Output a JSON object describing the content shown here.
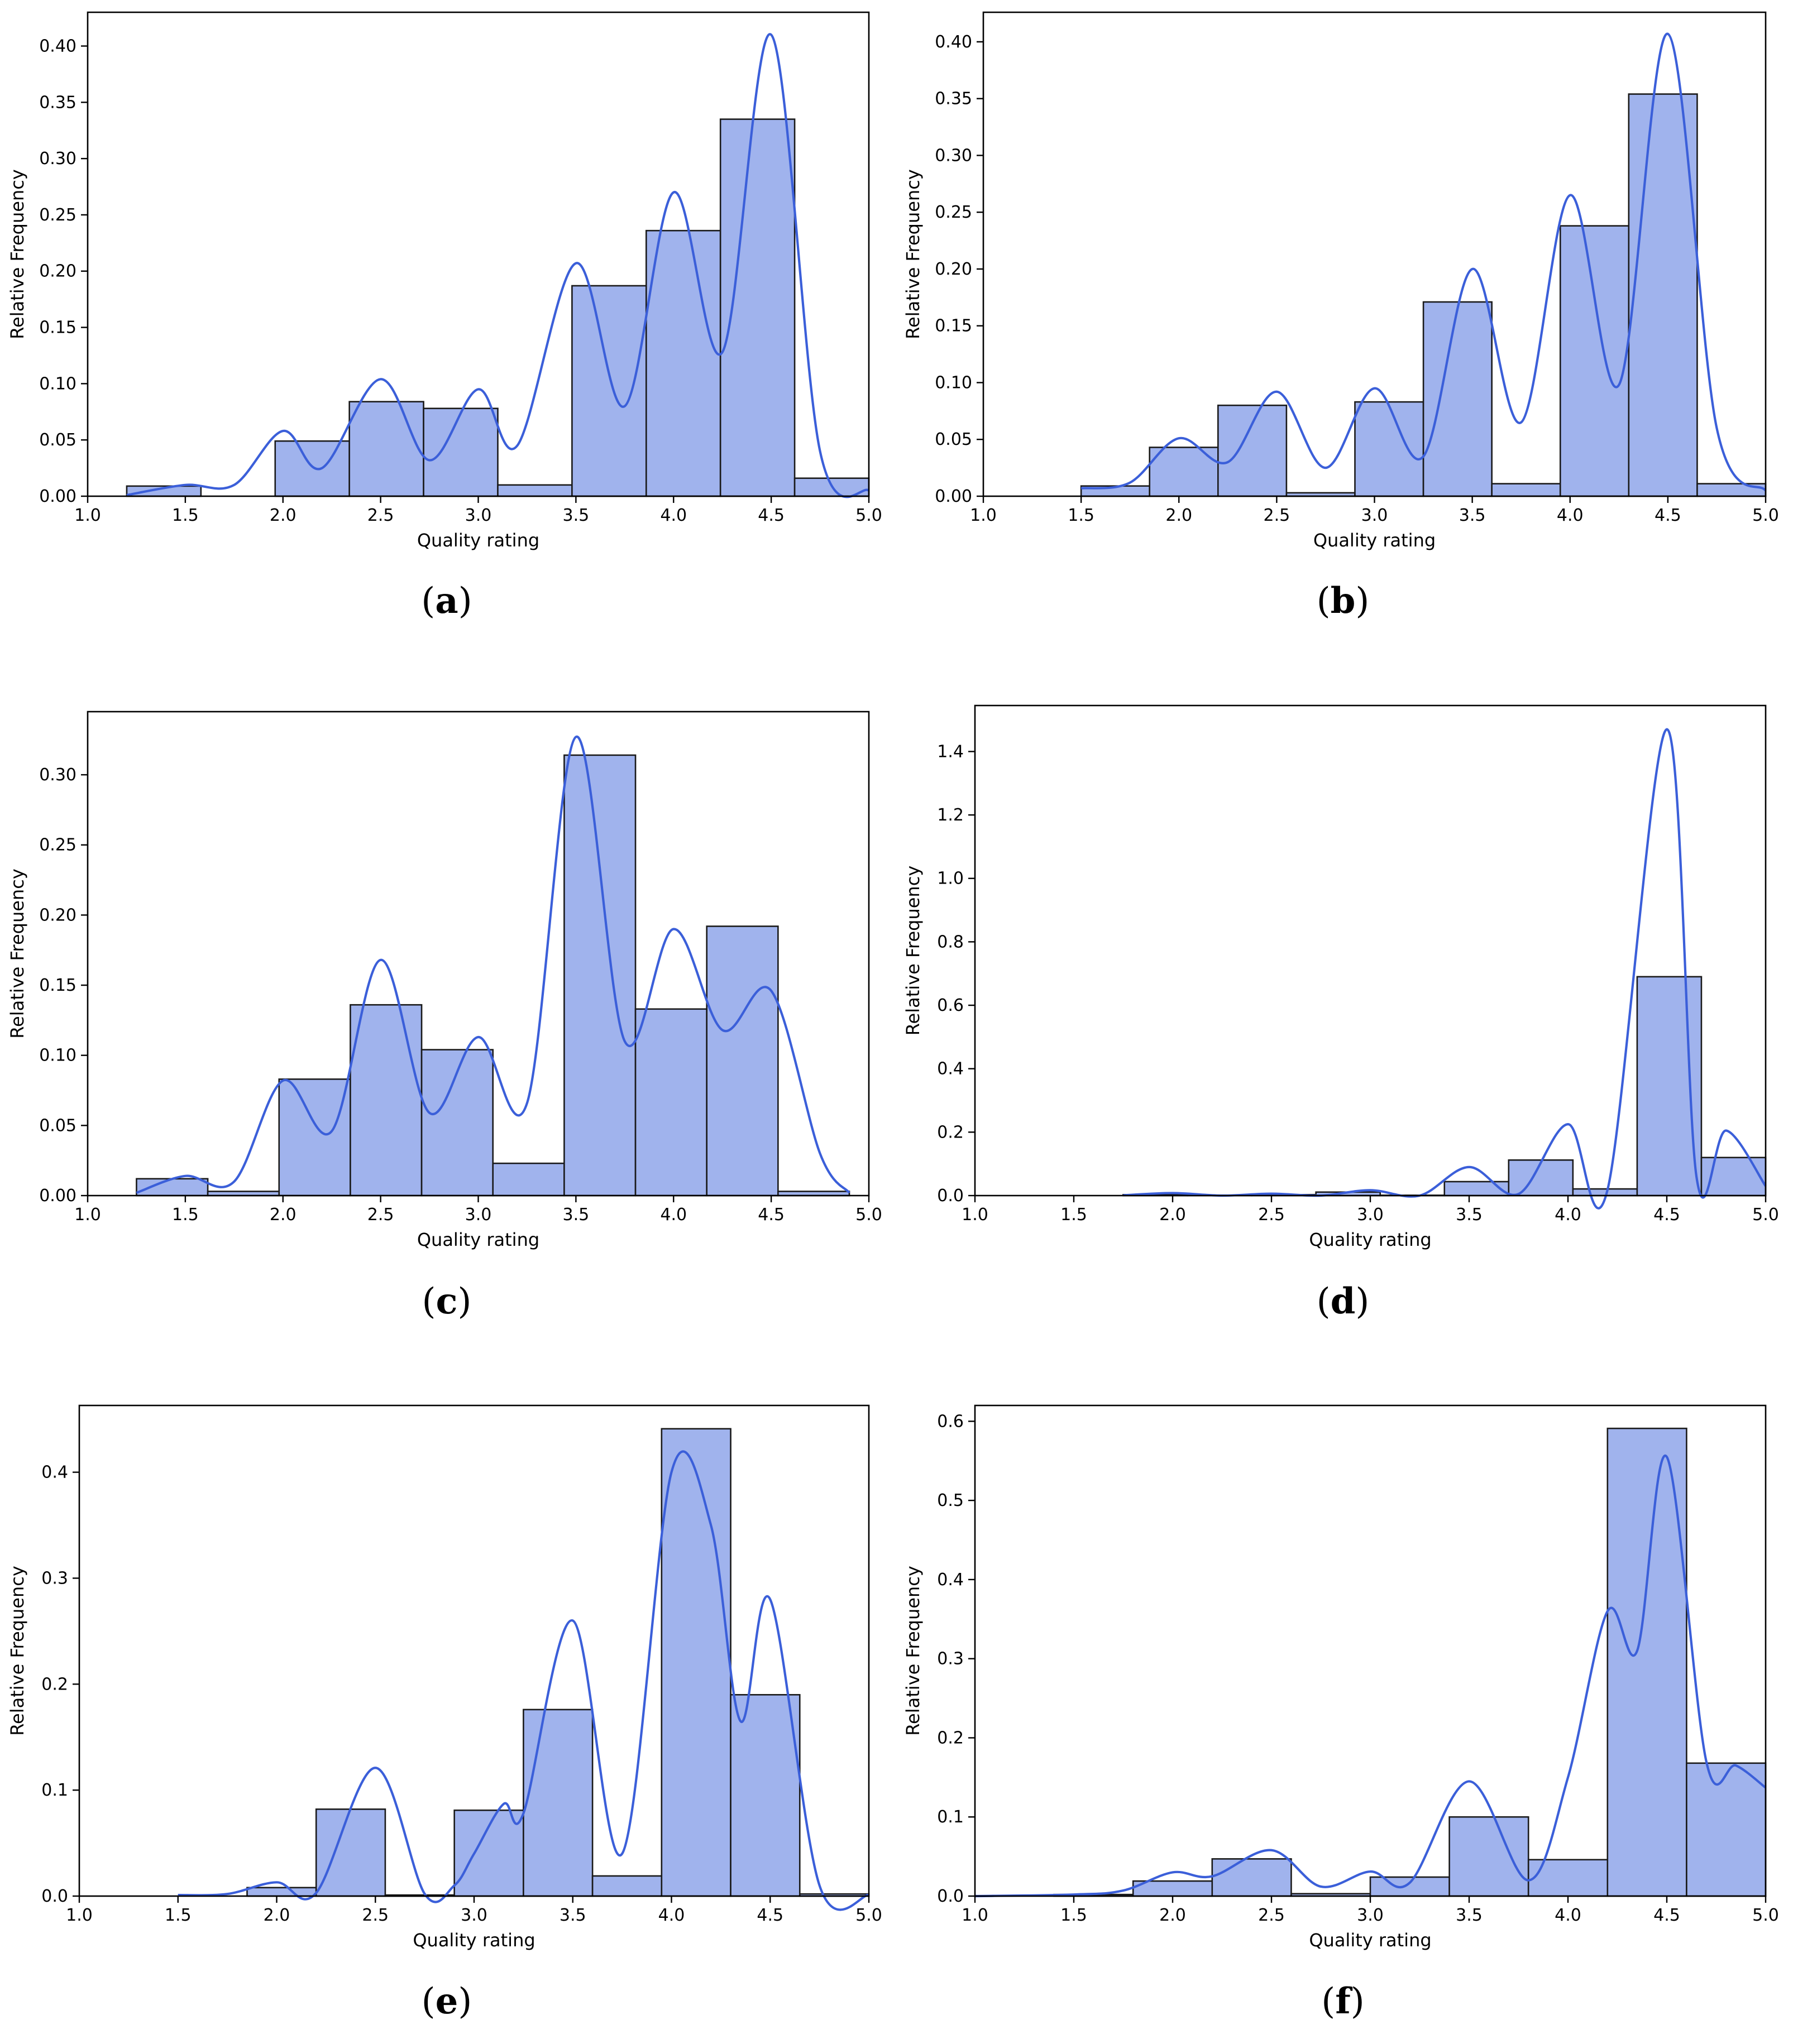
{
  "chart_data": [
    {
      "type": "bar",
      "label_letter": "a",
      "xlabel": "Quality rating",
      "ylabel": "Relative Frequency",
      "xlim": [
        1.0,
        5.0
      ],
      "ylim": [
        0.0,
        0.43
      ],
      "xticks": [
        1.0,
        1.5,
        2.0,
        2.5,
        3.0,
        3.5,
        4.0,
        4.5,
        5.0
      ],
      "yticks": [
        0.0,
        0.05,
        0.1,
        0.15,
        0.2,
        0.25,
        0.3,
        0.35,
        0.4
      ],
      "xtick_labels": [
        "1.0",
        "1.5",
        "2.0",
        "2.5",
        "3.0",
        "3.5",
        "4.0",
        "4.5",
        "5.0"
      ],
      "ytick_labels": [
        "0.00",
        "0.05",
        "0.10",
        "0.15",
        "0.20",
        "0.25",
        "0.30",
        "0.35",
        "0.40"
      ],
      "bins": [
        {
          "x0": 1.2,
          "x1": 1.58,
          "value": 0.009
        },
        {
          "x0": 1.58,
          "x1": 1.96,
          "value": 0.0
        },
        {
          "x0": 1.96,
          "x1": 2.34,
          "value": 0.049
        },
        {
          "x0": 2.34,
          "x1": 2.72,
          "value": 0.084
        },
        {
          "x0": 2.72,
          "x1": 3.1,
          "value": 0.078
        },
        {
          "x0": 3.1,
          "x1": 3.48,
          "value": 0.01
        },
        {
          "x0": 3.48,
          "x1": 3.86,
          "value": 0.187
        },
        {
          "x0": 3.86,
          "x1": 4.24,
          "value": 0.236
        },
        {
          "x0": 4.24,
          "x1": 4.62,
          "value": 0.335
        },
        {
          "x0": 4.62,
          "x1": 5.0,
          "value": 0.016
        }
      ],
      "kde": [
        [
          1.2,
          0.001
        ],
        [
          1.5,
          0.01
        ],
        [
          1.75,
          0.01
        ],
        [
          2.0,
          0.058
        ],
        [
          2.2,
          0.025
        ],
        [
          2.5,
          0.104
        ],
        [
          2.75,
          0.032
        ],
        [
          3.0,
          0.095
        ],
        [
          3.2,
          0.045
        ],
        [
          3.5,
          0.207
        ],
        [
          3.75,
          0.08
        ],
        [
          4.0,
          0.27
        ],
        [
          4.25,
          0.128
        ],
        [
          4.5,
          0.41
        ],
        [
          4.75,
          0.04
        ],
        [
          5.0,
          0.005
        ]
      ]
    },
    {
      "type": "bar",
      "label_letter": "b",
      "xlabel": "Quality rating",
      "ylabel": "Relative Frequency",
      "xlim": [
        1.0,
        5.0
      ],
      "ylim": [
        0.0,
        0.426
      ],
      "xticks": [
        1.0,
        1.5,
        2.0,
        2.5,
        3.0,
        3.5,
        4.0,
        4.5,
        5.0
      ],
      "yticks": [
        0.0,
        0.05,
        0.1,
        0.15,
        0.2,
        0.25,
        0.3,
        0.35,
        0.4
      ],
      "xtick_labels": [
        "1.0",
        "1.5",
        "2.0",
        "2.5",
        "3.0",
        "3.5",
        "4.0",
        "4.5",
        "5.0"
      ],
      "ytick_labels": [
        "0.00",
        "0.05",
        "0.10",
        "0.15",
        "0.20",
        "0.25",
        "0.30",
        "0.35",
        "0.40"
      ],
      "bins": [
        {
          "x0": 1.5,
          "x1": 1.85,
          "value": 0.009
        },
        {
          "x0": 1.85,
          "x1": 2.2,
          "value": 0.043
        },
        {
          "x0": 2.2,
          "x1": 2.55,
          "value": 0.08
        },
        {
          "x0": 2.55,
          "x1": 2.9,
          "value": 0.003
        },
        {
          "x0": 2.9,
          "x1": 3.25,
          "value": 0.083
        },
        {
          "x0": 3.25,
          "x1": 3.6,
          "value": 0.171
        },
        {
          "x0": 3.6,
          "x1": 3.95,
          "value": 0.011
        },
        {
          "x0": 3.95,
          "x1": 4.3,
          "value": 0.238
        },
        {
          "x0": 4.3,
          "x1": 4.65,
          "value": 0.354
        },
        {
          "x0": 4.65,
          "x1": 5.0,
          "value": 0.011
        }
      ],
      "kde": [
        [
          1.5,
          0.007
        ],
        [
          1.75,
          0.012
        ],
        [
          2.0,
          0.051
        ],
        [
          2.25,
          0.03
        ],
        [
          2.5,
          0.092
        ],
        [
          2.75,
          0.025
        ],
        [
          3.0,
          0.095
        ],
        [
          3.25,
          0.035
        ],
        [
          3.5,
          0.2
        ],
        [
          3.75,
          0.065
        ],
        [
          4.0,
          0.265
        ],
        [
          4.25,
          0.098
        ],
        [
          4.5,
          0.407
        ],
        [
          4.75,
          0.06
        ],
        [
          5.0,
          0.005
        ]
      ]
    },
    {
      "type": "bar",
      "label_letter": "c",
      "xlabel": "Quality rating",
      "ylabel": "Relative Frequency",
      "xlim": [
        1.0,
        5.0
      ],
      "ylim": [
        0.0,
        0.345
      ],
      "xticks": [
        1.0,
        1.5,
        2.0,
        2.5,
        3.0,
        3.5,
        4.0,
        4.5,
        5.0
      ],
      "yticks": [
        0.0,
        0.05,
        0.1,
        0.15,
        0.2,
        0.25,
        0.3
      ],
      "xtick_labels": [
        "1.0",
        "1.5",
        "2.0",
        "2.5",
        "3.0",
        "3.5",
        "4.0",
        "4.5",
        "5.0"
      ],
      "ytick_labels": [
        "0.00",
        "0.05",
        "0.10",
        "0.15",
        "0.20",
        "0.25",
        "0.30"
      ],
      "bins": [
        {
          "x0": 1.25,
          "x1": 1.615,
          "value": 0.012
        },
        {
          "x0": 1.615,
          "x1": 1.98,
          "value": 0.003
        },
        {
          "x0": 1.98,
          "x1": 2.345,
          "value": 0.083
        },
        {
          "x0": 2.345,
          "x1": 2.71,
          "value": 0.136
        },
        {
          "x0": 2.71,
          "x1": 3.075,
          "value": 0.104
        },
        {
          "x0": 3.075,
          "x1": 3.44,
          "value": 0.023
        },
        {
          "x0": 3.44,
          "x1": 3.805,
          "value": 0.314
        },
        {
          "x0": 3.805,
          "x1": 4.17,
          "value": 0.133
        },
        {
          "x0": 4.17,
          "x1": 4.535,
          "value": 0.192
        },
        {
          "x0": 4.535,
          "x1": 4.9,
          "value": 0.003
        }
      ],
      "kde": [
        [
          1.25,
          0.002
        ],
        [
          1.5,
          0.014
        ],
        [
          1.75,
          0.01
        ],
        [
          2.0,
          0.082
        ],
        [
          2.25,
          0.046
        ],
        [
          2.5,
          0.168
        ],
        [
          2.75,
          0.059
        ],
        [
          3.0,
          0.113
        ],
        [
          3.25,
          0.066
        ],
        [
          3.5,
          0.327
        ],
        [
          3.75,
          0.11
        ],
        [
          4.0,
          0.19
        ],
        [
          4.25,
          0.118
        ],
        [
          4.5,
          0.146
        ],
        [
          4.75,
          0.03
        ],
        [
          4.9,
          0.002
        ]
      ]
    },
    {
      "type": "bar",
      "label_letter": "d",
      "xlabel": "Quality rating",
      "ylabel": "Relative Frequency",
      "xlim": [
        1.0,
        5.0
      ],
      "ylim": [
        0.0,
        1.545
      ],
      "xticks": [
        1.0,
        1.5,
        2.0,
        2.5,
        3.0,
        3.5,
        4.0,
        4.5,
        5.0
      ],
      "yticks": [
        0.0,
        0.2,
        0.4,
        0.6,
        0.8,
        1.0,
        1.2,
        1.4
      ],
      "xtick_labels": [
        "1.0",
        "1.5",
        "2.0",
        "2.5",
        "3.0",
        "3.5",
        "4.0",
        "4.5",
        "5.0"
      ],
      "ytick_labels": [
        "0.0",
        "0.2",
        "0.4",
        "0.6",
        "0.8",
        "1.0",
        "1.2",
        "1.4"
      ],
      "bins": [
        {
          "x0": 1.75,
          "x1": 2.075,
          "value": 0.003
        },
        {
          "x0": 2.075,
          "x1": 2.4,
          "value": 0.001
        },
        {
          "x0": 2.4,
          "x1": 2.725,
          "value": 0.003
        },
        {
          "x0": 2.725,
          "x1": 3.05,
          "value": 0.011
        },
        {
          "x0": 3.05,
          "x1": 3.375,
          "value": 0.001
        },
        {
          "x0": 3.375,
          "x1": 3.7,
          "value": 0.044
        },
        {
          "x0": 3.7,
          "x1": 4.025,
          "value": 0.112
        },
        {
          "x0": 4.025,
          "x1": 4.35,
          "value": 0.021
        },
        {
          "x0": 4.35,
          "x1": 4.675,
          "value": 0.69
        },
        {
          "x0": 4.675,
          "x1": 5.0,
          "value": 0.12
        }
      ],
      "kde": [
        [
          1.75,
          0.001
        ],
        [
          2.0,
          0.008
        ],
        [
          2.25,
          0.0
        ],
        [
          2.5,
          0.006
        ],
        [
          2.75,
          0.0
        ],
        [
          3.0,
          0.017
        ],
        [
          3.25,
          0.0
        ],
        [
          3.5,
          0.09
        ],
        [
          3.75,
          0.005
        ],
        [
          4.0,
          0.225
        ],
        [
          4.2,
          0.018
        ],
        [
          4.5,
          1.47
        ],
        [
          4.65,
          0.06
        ],
        [
          4.8,
          0.205
        ],
        [
          5.0,
          0.03
        ]
      ]
    },
    {
      "type": "bar",
      "label_letter": "e",
      "xlabel": "Quality rating",
      "ylabel": "Relative Frequency",
      "xlim": [
        1.0,
        5.0
      ],
      "ylim": [
        0.0,
        0.463
      ],
      "xticks": [
        1.0,
        1.5,
        2.0,
        2.5,
        3.0,
        3.5,
        4.0,
        4.5,
        5.0
      ],
      "yticks": [
        0.0,
        0.1,
        0.2,
        0.3,
        0.4
      ],
      "xtick_labels": [
        "1.0",
        "1.5",
        "2.0",
        "2.5",
        "3.0",
        "3.5",
        "4.0",
        "4.5",
        "5.0"
      ],
      "ytick_labels": [
        "0.0",
        "0.1",
        "0.2",
        "0.3",
        "0.4"
      ],
      "bins": [
        {
          "x0": 1.5,
          "x1": 1.85,
          "value": 0.0
        },
        {
          "x0": 1.85,
          "x1": 2.2,
          "value": 0.008
        },
        {
          "x0": 2.2,
          "x1": 2.55,
          "value": 0.082
        },
        {
          "x0": 2.55,
          "x1": 2.9,
          "value": 0.001
        },
        {
          "x0": 2.9,
          "x1": 3.25,
          "value": 0.081
        },
        {
          "x0": 3.25,
          "x1": 3.6,
          "value": 0.176
        },
        {
          "x0": 3.6,
          "x1": 3.95,
          "value": 0.019
        },
        {
          "x0": 3.95,
          "x1": 4.3,
          "value": 0.441
        },
        {
          "x0": 4.3,
          "x1": 4.65,
          "value": 0.19
        },
        {
          "x0": 4.65,
          "x1": 5.0,
          "value": 0.002
        }
      ],
      "kde": [
        [
          1.5,
          0.001
        ],
        [
          1.75,
          0.002
        ],
        [
          2.0,
          0.013
        ],
        [
          2.2,
          0.003
        ],
        [
          2.5,
          0.121
        ],
        [
          2.75,
          0.002
        ],
        [
          2.9,
          0.01
        ],
        [
          3.0,
          0.04
        ],
        [
          3.15,
          0.087
        ],
        [
          3.25,
          0.078
        ],
        [
          3.5,
          0.26
        ],
        [
          3.75,
          0.04
        ],
        [
          4.0,
          0.4
        ],
        [
          4.2,
          0.35
        ],
        [
          4.35,
          0.165
        ],
        [
          4.5,
          0.28
        ],
        [
          4.75,
          0.01
        ],
        [
          5.0,
          0.001
        ]
      ]
    },
    {
      "type": "bar",
      "label_letter": "f",
      "xlabel": "Quality rating",
      "ylabel": "Relative Frequency",
      "xlim": [
        1.0,
        5.0
      ],
      "ylim": [
        0.0,
        0.62
      ],
      "xticks": [
        1.0,
        1.5,
        2.0,
        2.5,
        3.0,
        3.5,
        4.0,
        4.5,
        5.0
      ],
      "yticks": [
        0.0,
        0.1,
        0.2,
        0.3,
        0.4,
        0.5,
        0.6
      ],
      "xtick_labels": [
        "1.0",
        "1.5",
        "2.0",
        "2.5",
        "3.0",
        "3.5",
        "4.0",
        "4.5",
        "5.0"
      ],
      "ytick_labels": [
        "0.0",
        "0.1",
        "0.2",
        "0.3",
        "0.4",
        "0.5",
        "0.6"
      ],
      "bins": [
        {
          "x0": 1.4,
          "x1": 1.8,
          "value": 0.002
        },
        {
          "x0": 1.8,
          "x1": 2.2,
          "value": 0.019
        },
        {
          "x0": 2.2,
          "x1": 2.6,
          "value": 0.047
        },
        {
          "x0": 2.6,
          "x1": 3.0,
          "value": 0.003
        },
        {
          "x0": 3.0,
          "x1": 3.4,
          "value": 0.024
        },
        {
          "x0": 3.4,
          "x1": 3.8,
          "value": 0.1
        },
        {
          "x0": 3.8,
          "x1": 4.2,
          "value": 0.046
        },
        {
          "x0": 4.2,
          "x1": 4.6,
          "value": 0.591
        },
        {
          "x0": 4.6,
          "x1": 5.0,
          "value": 0.168
        }
      ],
      "kde": [
        [
          1.0,
          0.0
        ],
        [
          1.5,
          0.002
        ],
        [
          1.75,
          0.007
        ],
        [
          2.0,
          0.03
        ],
        [
          2.2,
          0.025
        ],
        [
          2.5,
          0.058
        ],
        [
          2.75,
          0.012
        ],
        [
          3.0,
          0.031
        ],
        [
          3.2,
          0.017
        ],
        [
          3.5,
          0.145
        ],
        [
          3.8,
          0.02
        ],
        [
          4.0,
          0.15
        ],
        [
          4.2,
          0.36
        ],
        [
          4.35,
          0.31
        ],
        [
          4.5,
          0.555
        ],
        [
          4.7,
          0.17
        ],
        [
          4.85,
          0.165
        ],
        [
          5.0,
          0.137
        ]
      ]
    }
  ],
  "panels": [
    {
      "label": "(a)",
      "letter": "a"
    },
    {
      "label": "(b)",
      "letter": "b"
    },
    {
      "label": "(c)",
      "letter": "c"
    },
    {
      "label": "(d)",
      "letter": "d"
    },
    {
      "label": "(e)",
      "letter": "e"
    },
    {
      "label": "(f)",
      "letter": "f"
    }
  ],
  "colors": {
    "bar_fill": "#a0b3ed",
    "bar_edge": "#1a1a1a",
    "kde_line": "#3b5fd9",
    "axis": "#000000"
  }
}
